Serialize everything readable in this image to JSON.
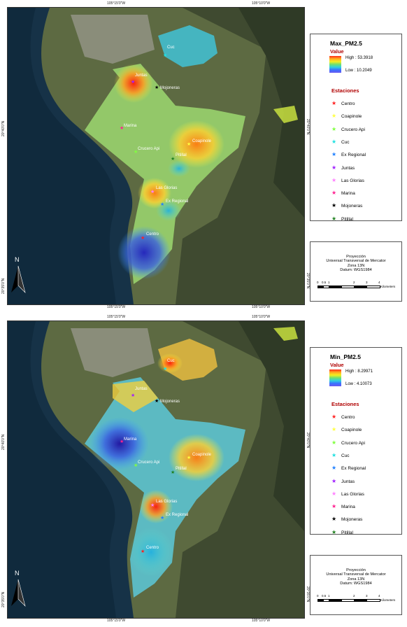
{
  "coords": {
    "top_left": "105°15'0\"W",
    "top_right": "105°10'0\"W",
    "bottom_left": "105°15'0\"W",
    "bottom_right": "105°10'0\"W",
    "left_upper": "20°40'0\"N",
    "left_lower": "20°35'0\"N",
    "right_upper": "20°40'0\"N",
    "right_lower": "20°35'0\"N"
  },
  "maps": [
    {
      "legend_title": "Max_PM2.5",
      "value_label": "Value",
      "high_label": "High : 53.3918",
      "low_label": "Low : 10.2049"
    },
    {
      "legend_title": "Min_PM2.5",
      "value_label": "Value",
      "high_label": "High : 8.29971",
      "low_label": "Low : 4.10073"
    }
  ],
  "stations_title": "Estaciones",
  "stations": [
    {
      "name": "Centro",
      "color": "#ff2020"
    },
    {
      "name": "Coapinole",
      "color": "#ffff40"
    },
    {
      "name": "Crucero Api",
      "color": "#80ff40"
    },
    {
      "name": "Cuc",
      "color": "#20e0e0"
    },
    {
      "name": "Ex Regional",
      "color": "#2080ff"
    },
    {
      "name": "Juntas",
      "color": "#a020ff"
    },
    {
      "name": "Las Glorias",
      "color": "#ff80ff"
    },
    {
      "name": "Marina",
      "color": "#ff2090"
    },
    {
      "name": "Mojoneras",
      "color": "#000000"
    },
    {
      "name": "Pitillal",
      "color": "#208020"
    }
  ],
  "map_labels": [
    "Cuc",
    "Juntas",
    "Mojoneras",
    "Marina",
    "Coapinole",
    "Crucero Api",
    "Pitillal",
    "Las Glorias",
    "Ex Regional",
    "Centro"
  ],
  "projection": [
    "Proyección",
    "Universal Transversal de Mercator",
    "Zona 13N",
    "Datum: WGS1984"
  ],
  "scale": {
    "ticks": [
      "0",
      "0.5",
      "1",
      "2",
      "3",
      "4"
    ],
    "unit": "Kilometers"
  },
  "north_label": "N"
}
